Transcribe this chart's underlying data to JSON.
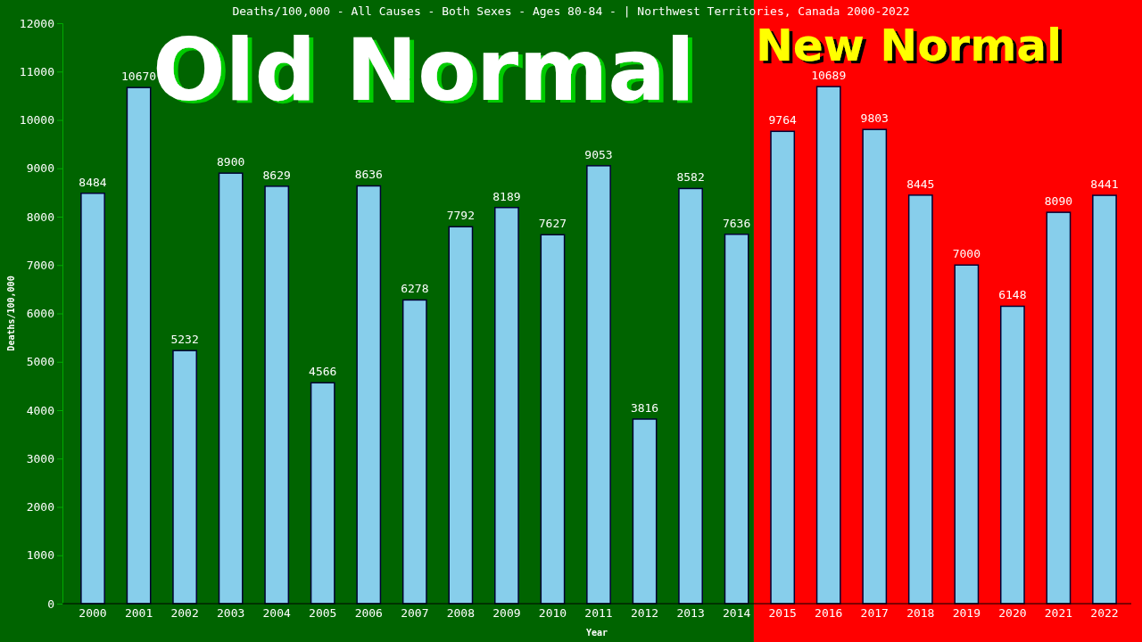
{
  "chart_data": {
    "type": "bar",
    "title": "Deaths/100,000 - All Causes - Both Sexes - Ages 80-84 -  | Northwest Territories, Canada 2000-2022",
    "xlabel": "Year",
    "ylabel": "Deaths/100,000",
    "categories": [
      "2000",
      "2001",
      "2002",
      "2003",
      "2004",
      "2005",
      "2006",
      "2007",
      "2008",
      "2009",
      "2010",
      "2011",
      "2012",
      "2013",
      "2014",
      "2015",
      "2016",
      "2017",
      "2018",
      "2019",
      "2020",
      "2021",
      "2022"
    ],
    "values": [
      8484,
      10670,
      5232,
      8900,
      8629,
      4566,
      8636,
      6278,
      7792,
      8189,
      7627,
      9053,
      3816,
      8582,
      7636,
      9764,
      10689,
      9803,
      8445,
      7000,
      6148,
      8090,
      8441
    ],
    "color": "#87ceeb",
    "data_labels": true,
    "ylim": [
      0,
      12000
    ],
    "yticks": [
      0,
      1000,
      2000,
      3000,
      4000,
      5000,
      6000,
      7000,
      8000,
      9000,
      10000,
      11000,
      12000
    ],
    "grid": false,
    "bands": [
      {
        "axis": "x",
        "from": "2000",
        "to": "2014",
        "label": "Old Normal",
        "color": "#006400"
      },
      {
        "axis": "x",
        "from": "2015",
        "to": "2022",
        "label": "New Normal",
        "color": "#ff0000"
      }
    ]
  }
}
